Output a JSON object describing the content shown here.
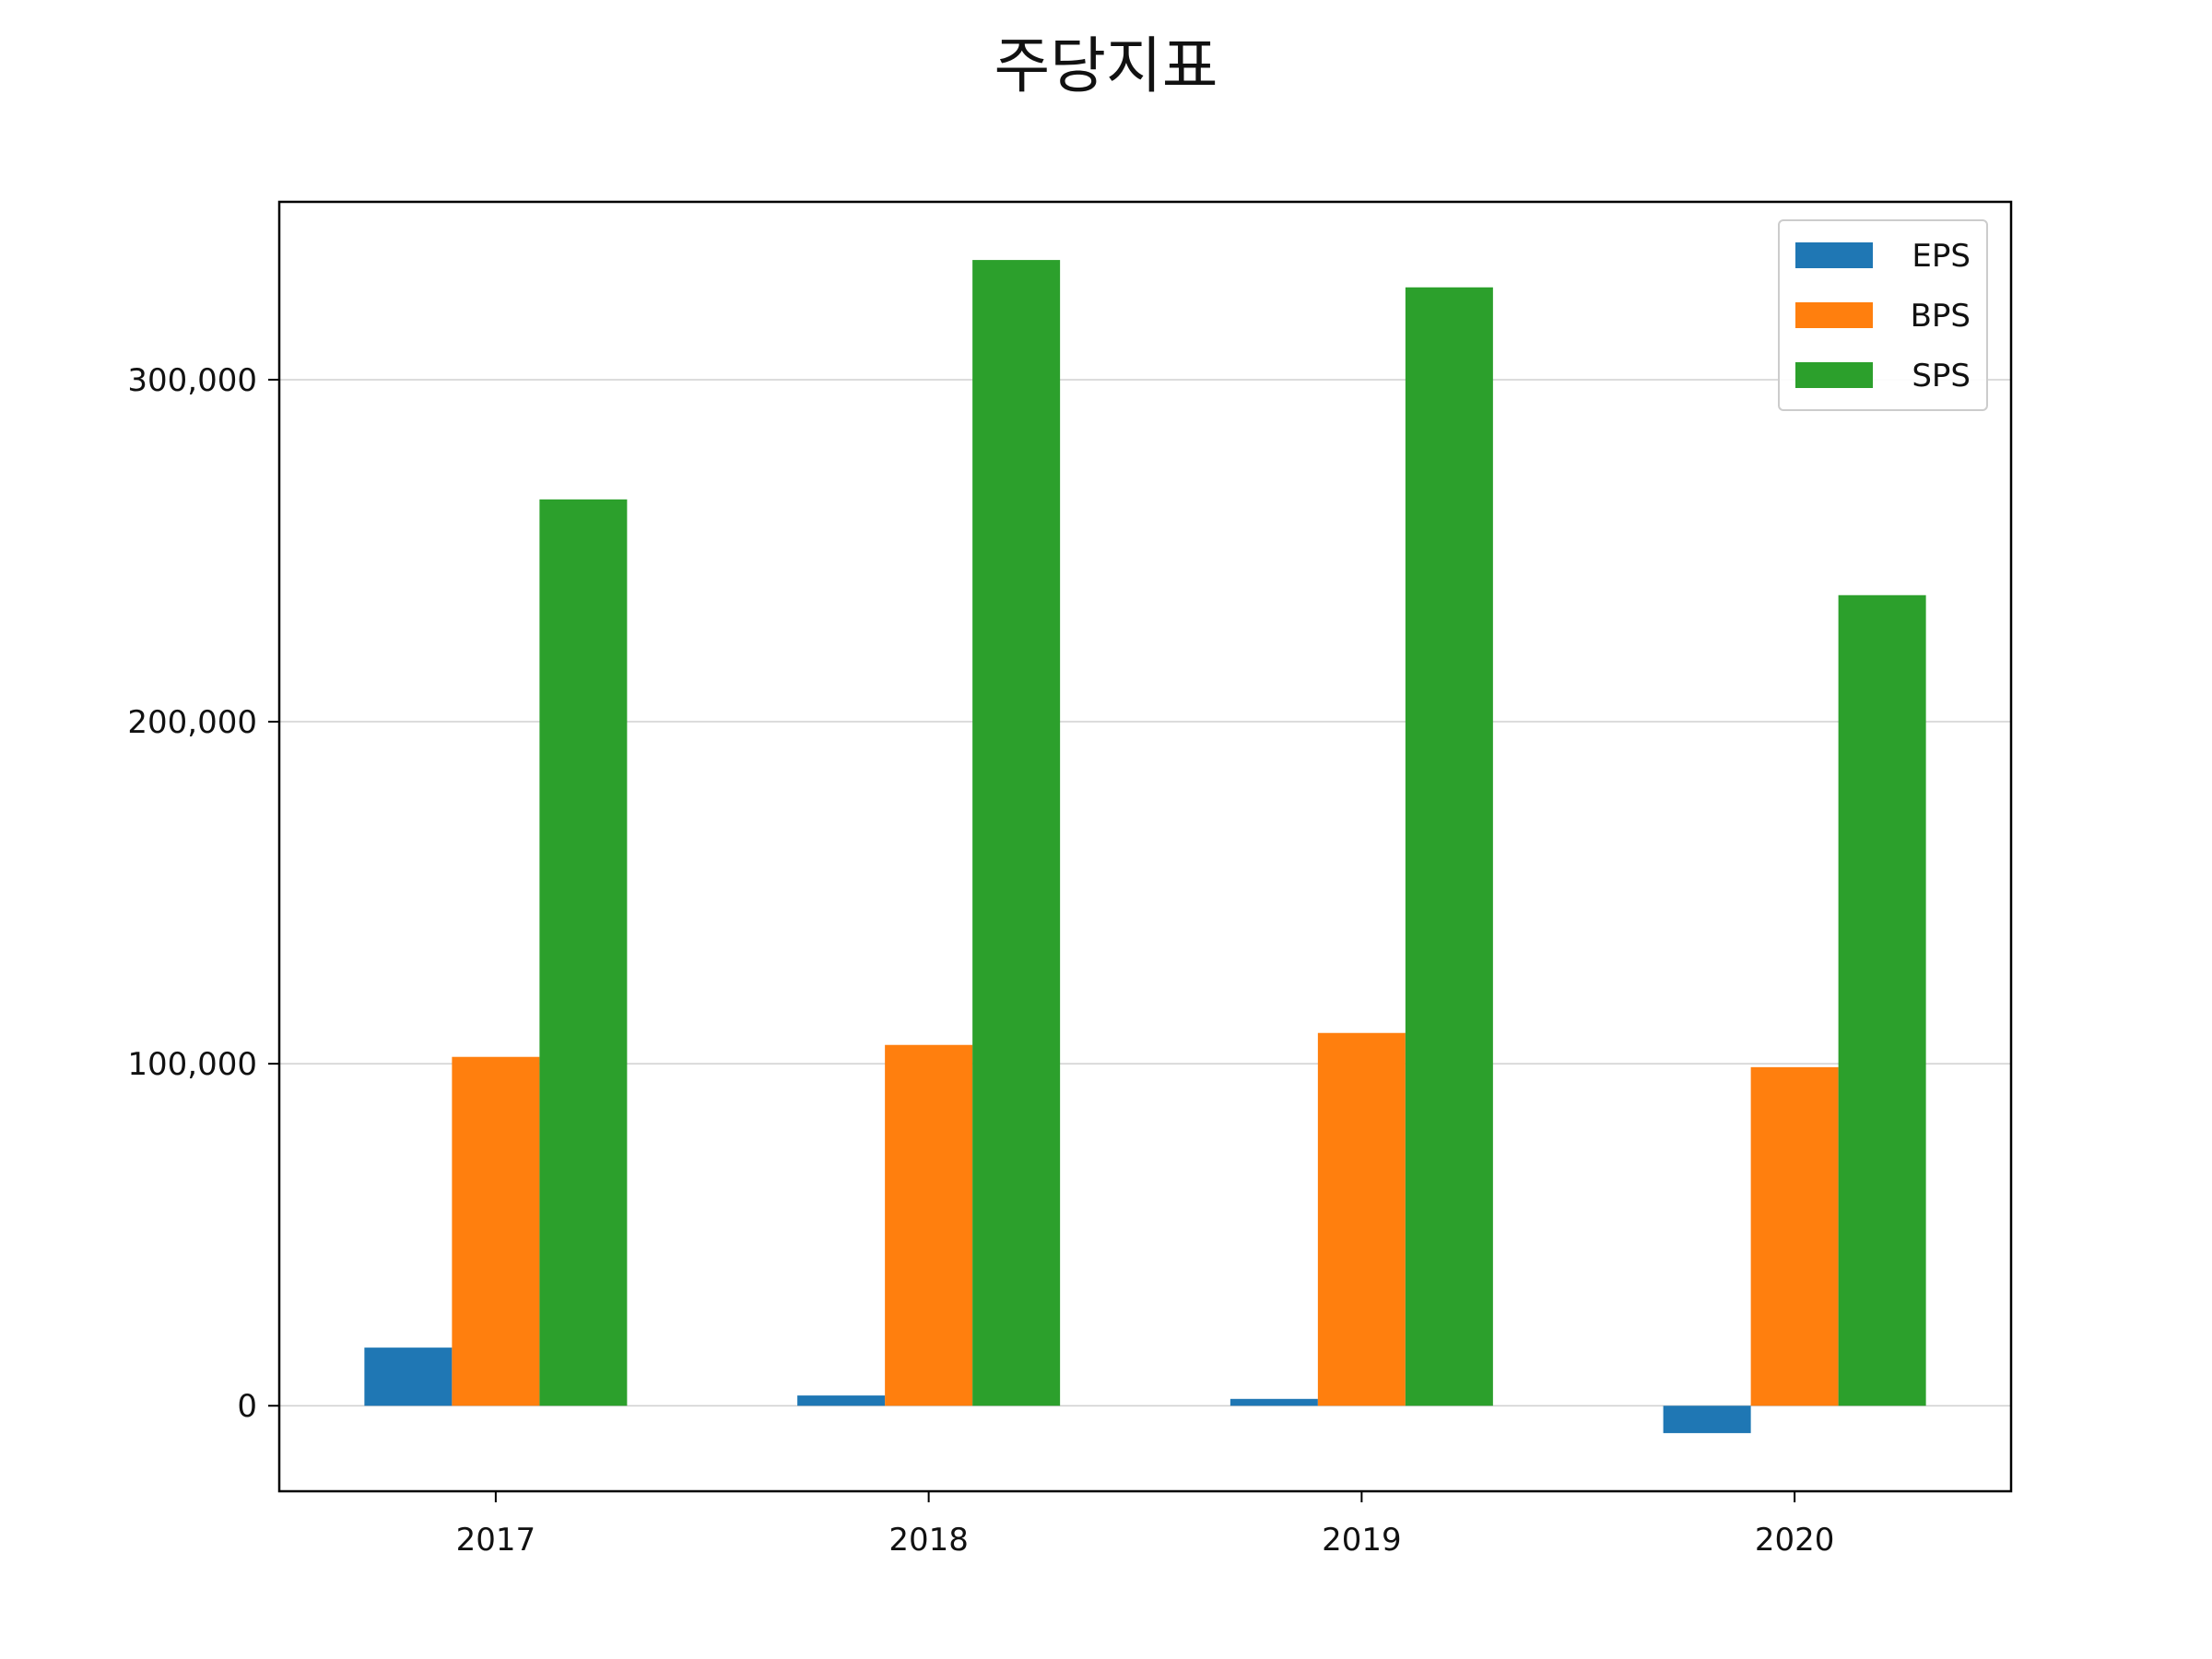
{
  "chart_data": {
    "type": "bar",
    "title": "주당지표",
    "xlabel": "",
    "ylabel": "",
    "categories": [
      "2017",
      "2018",
      "2019",
      "2020"
    ],
    "series": [
      {
        "name": "EPS",
        "color": "#1f77b4",
        "values": [
          17000,
          3000,
          2000,
          -8000
        ]
      },
      {
        "name": "BPS",
        "color": "#ff7f0e",
        "values": [
          102000,
          105500,
          109000,
          99000
        ]
      },
      {
        "name": "SPS",
        "color": "#2ca02c",
        "values": [
          265000,
          335000,
          327000,
          237000
        ]
      }
    ],
    "ylim": [
      -25000,
      352000
    ],
    "yticks": [
      0,
      100000,
      200000,
      300000
    ],
    "ytick_labels": [
      "0",
      "100,000",
      "200,000",
      "300,000"
    ],
    "grid": "y",
    "legend": "top-right"
  }
}
